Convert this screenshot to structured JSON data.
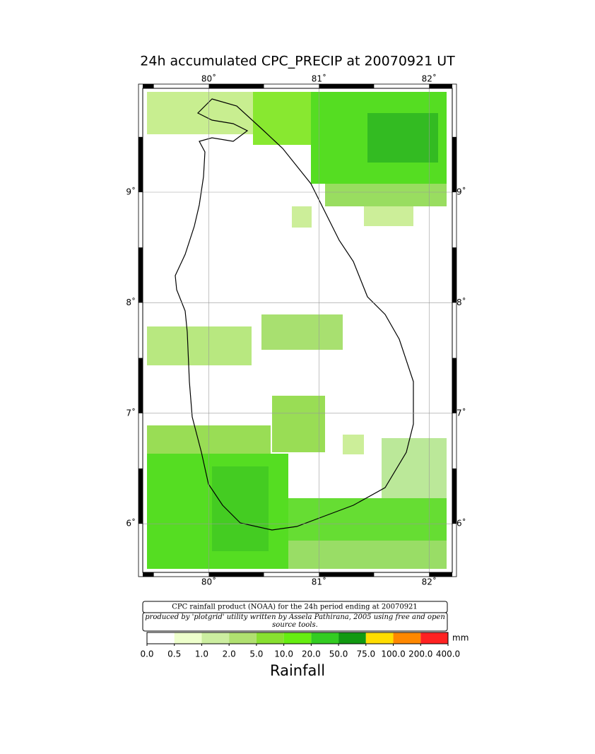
{
  "title": "24h accumulated CPC_PRECIP  at 20070921 UT",
  "map": {
    "lonlim": [
      79.4,
      82.21
    ],
    "latlim": [
      5.56,
      9.94
    ],
    "lon_ticks": [
      {
        "value": 80,
        "label": "80˚"
      },
      {
        "value": 81,
        "label": "81˚"
      },
      {
        "value": 82,
        "label": "82˚"
      }
    ],
    "lat_ticks": [
      {
        "value": 9,
        "label": "9˚"
      },
      {
        "value": 8,
        "label": "8˚"
      },
      {
        "value": 7,
        "label": "7˚"
      },
      {
        "value": 6,
        "label": "6˚"
      }
    ]
  },
  "caption": {
    "line1": "CPC rainfall product (NOAA) for the 24h period ending at 20070921",
    "line2": "produced by 'plotgrid' utility written by Assela Pathirana, 2005 using free and open source tools."
  },
  "colorbar": {
    "ticks": [
      {
        "value": 0,
        "label": "0.0"
      },
      {
        "value": 0.5,
        "label": "0.5"
      },
      {
        "value": 1,
        "label": "1.0"
      },
      {
        "value": 2,
        "label": "2.0"
      },
      {
        "value": 5,
        "label": "5.0"
      },
      {
        "value": 10,
        "label": "10.0"
      },
      {
        "value": 20,
        "label": "20.0"
      },
      {
        "value": 50,
        "label": "50.0"
      },
      {
        "value": 75,
        "label": "75.0"
      },
      {
        "value": 100,
        "label": "100.0"
      },
      {
        "value": 200,
        "label": "200.0"
      },
      {
        "value": 400,
        "label": "400.0"
      }
    ],
    "colors": [
      "#ffffff",
      "#eeffcc",
      "#cceea0",
      "#b0e070",
      "#88e030",
      "#66ee11",
      "#33cc22",
      "#119911",
      "#ffdd00",
      "#ff8800",
      "#ff2222",
      "#ff66cc"
    ],
    "unit": "mm",
    "label": "Rainfall"
  }
}
